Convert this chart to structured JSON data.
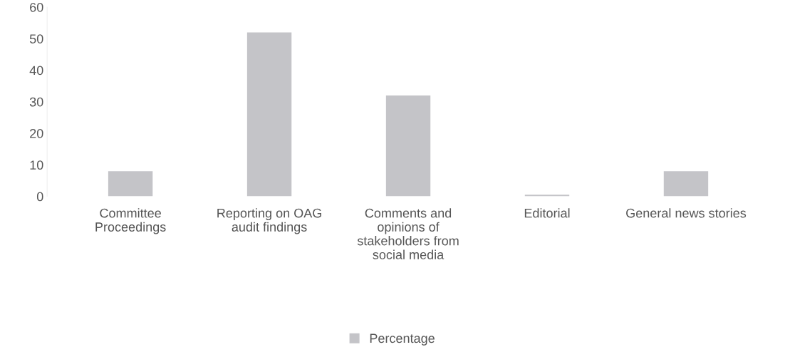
{
  "chart_data": {
    "type": "bar",
    "categories": [
      "Committee\nProceedings",
      "Reporting on OAG\naudit findings",
      "Comments and\nopinions of\nstakeholders from\nsocial media",
      "Editorial",
      "General news stories"
    ],
    "series": [
      {
        "name": "Percentage",
        "color": "#c4c4c8",
        "values": [
          8,
          52,
          32,
          0.5,
          8
        ]
      }
    ],
    "ylim": [
      0,
      60
    ],
    "yticks": [
      0,
      10,
      20,
      30,
      40,
      50,
      60
    ],
    "grid": false,
    "legend": "bottom"
  }
}
